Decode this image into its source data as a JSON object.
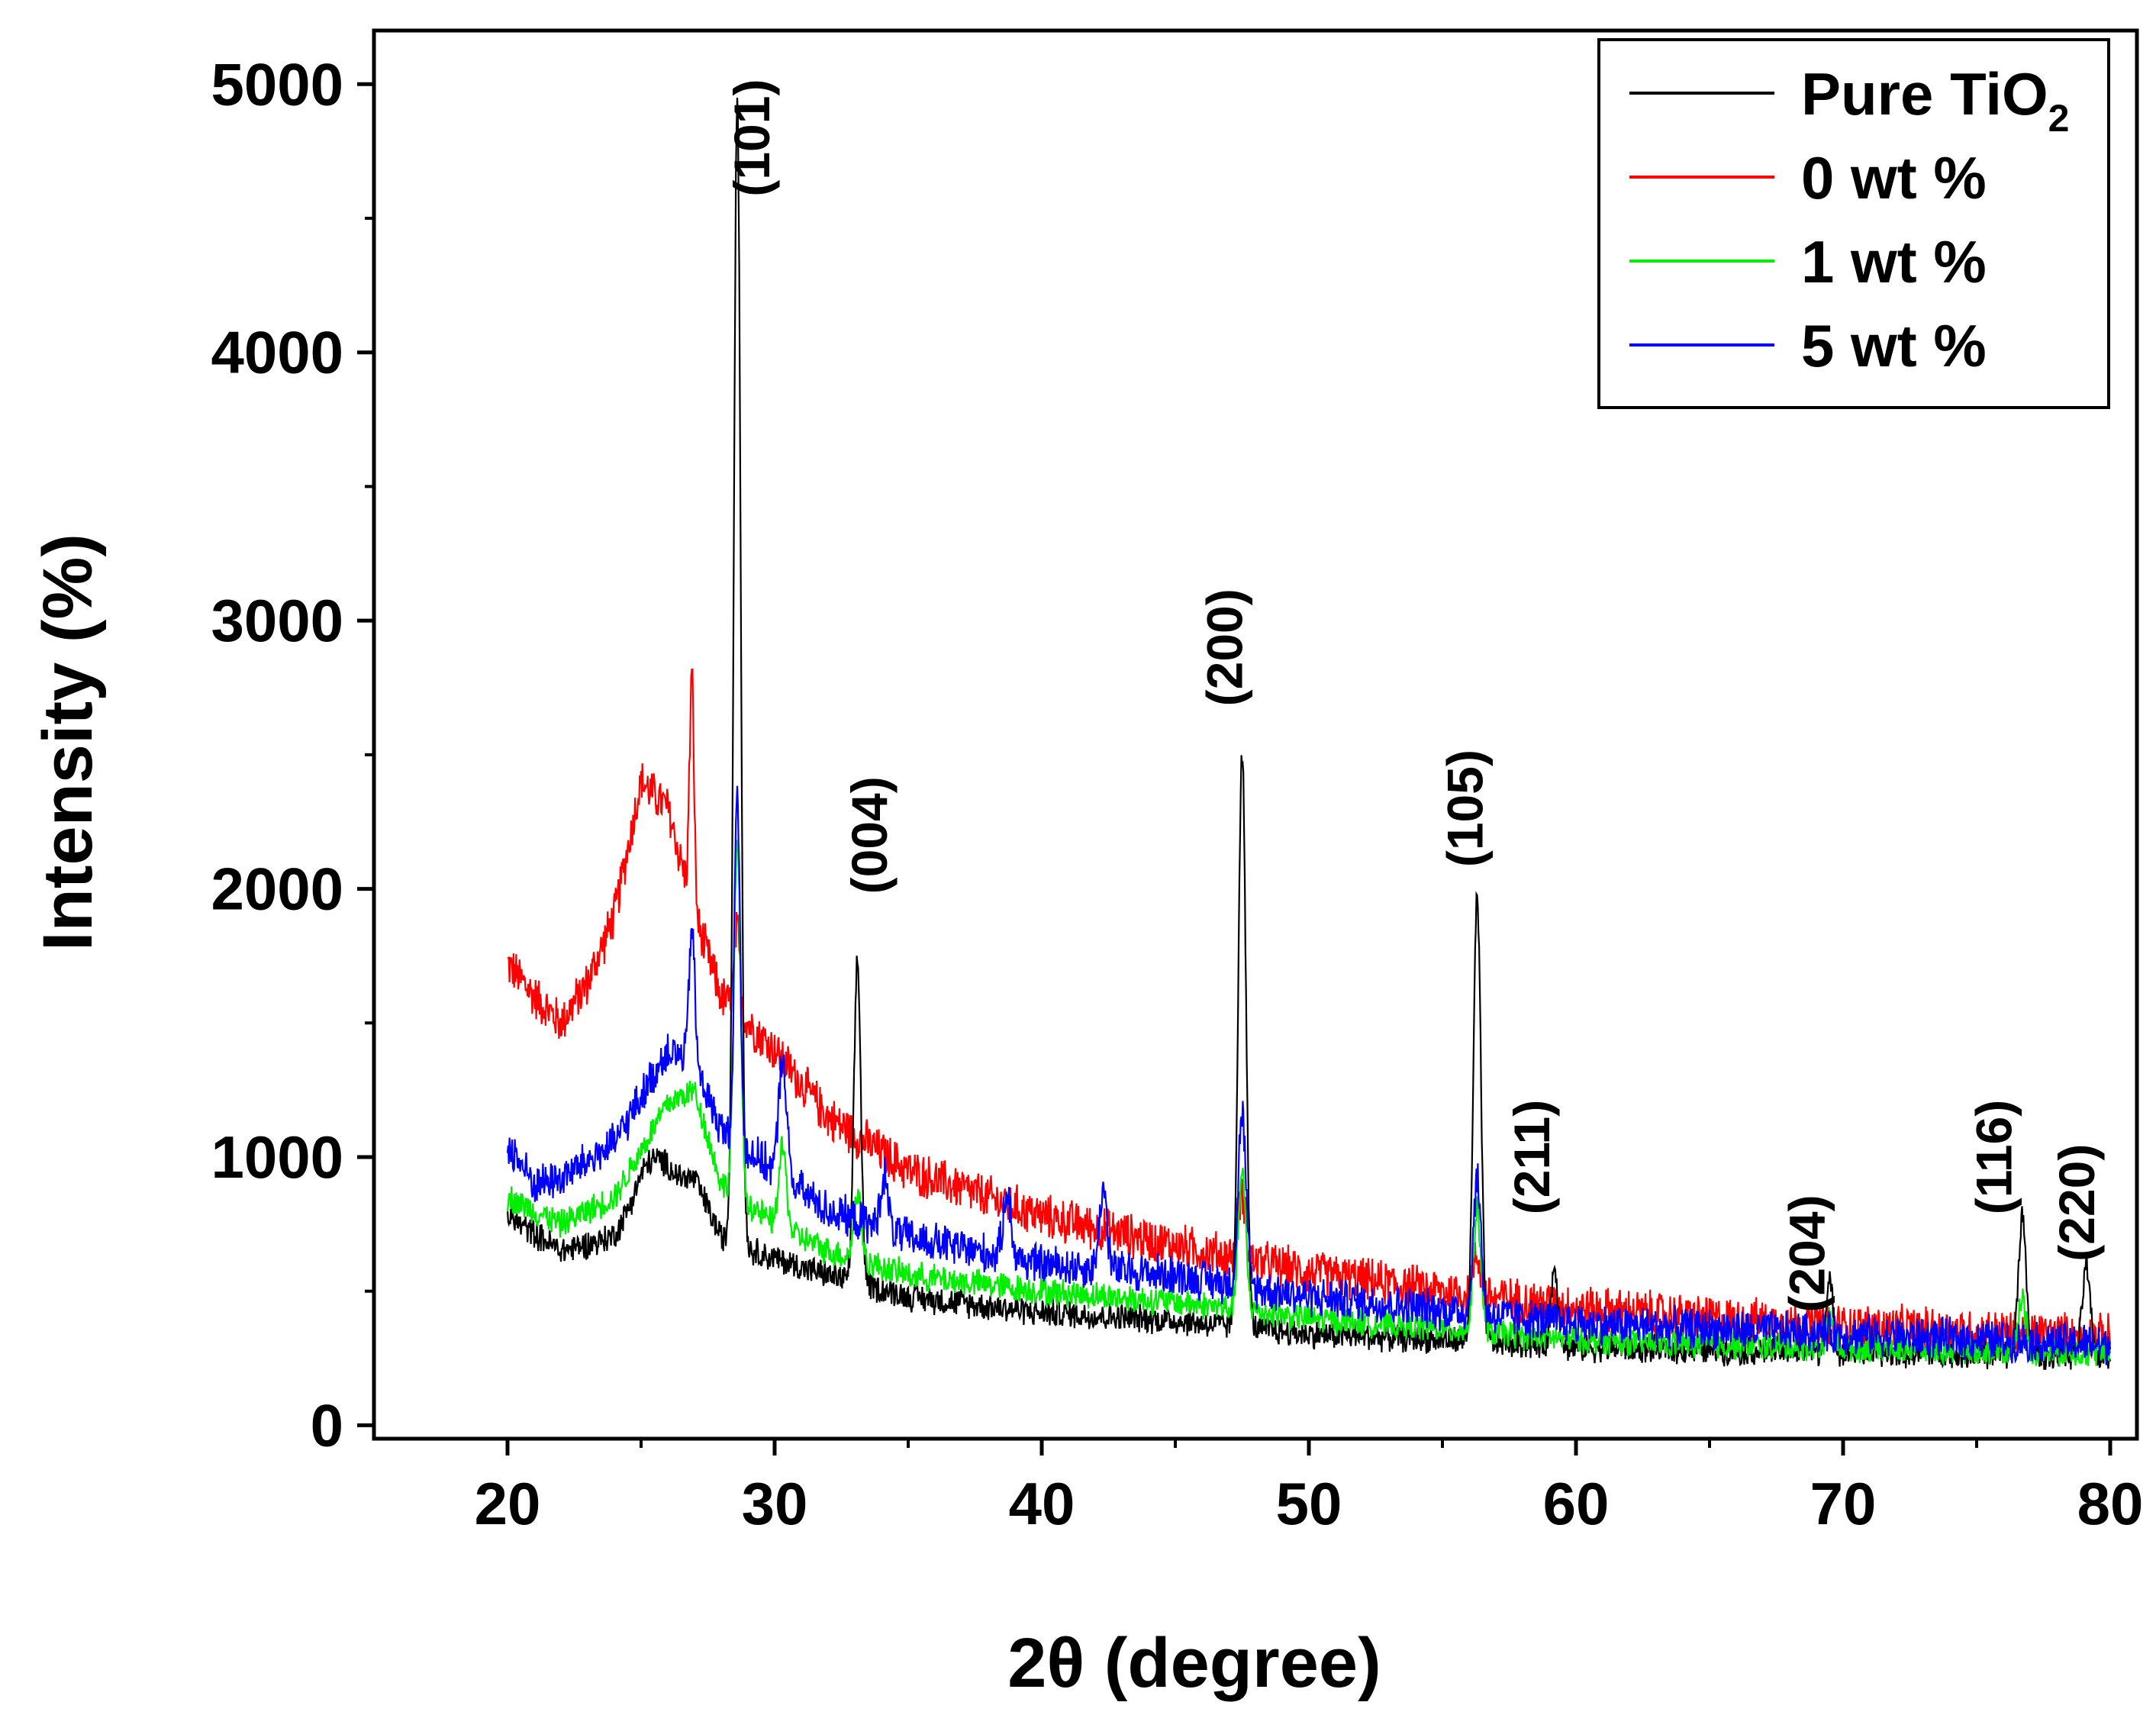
{
  "chart_data": {
    "type": "line",
    "title": "",
    "xlabel": "2θ (degree)",
    "ylabel": "Intensity (%)",
    "xlim": [
      15,
      81
    ],
    "ylim": [
      -50,
      5200
    ],
    "xticks": [
      20,
      30,
      40,
      50,
      60,
      70,
      80
    ],
    "yticks": [
      0,
      1000,
      2000,
      3000,
      4000,
      5000
    ],
    "grid": false,
    "legend_position": "top-right",
    "series": [
      {
        "name": "Pure TiO",
        "name_subscript": "2",
        "color": "#000000",
        "baseline": [
          [
            20,
            780
          ],
          [
            22,
            650
          ],
          [
            24,
            700
          ],
          [
            26,
            900
          ],
          [
            27,
            920
          ],
          [
            28,
            700
          ],
          [
            30,
            620
          ],
          [
            32,
            560
          ],
          [
            35,
            480
          ],
          [
            40,
            420
          ],
          [
            45,
            390
          ],
          [
            50,
            340
          ],
          [
            55,
            320
          ],
          [
            60,
            290
          ],
          [
            65,
            280
          ],
          [
            70,
            270
          ],
          [
            75,
            265
          ],
          [
            80,
            260
          ]
        ],
        "peaks": [
          [
            25.3,
            150,
            0.8
          ],
          [
            28.6,
            4300,
            0.18
          ],
          [
            33.1,
            1200,
            0.18
          ],
          [
            47.5,
            2150,
            0.2
          ],
          [
            56.3,
            1650,
            0.2
          ],
          [
            59.2,
            300,
            0.18
          ],
          [
            69.5,
            250,
            0.2
          ],
          [
            76.7,
            520,
            0.2
          ],
          [
            79.1,
            330,
            0.2
          ]
        ],
        "noise": 60
      },
      {
        "name": "0 wt %",
        "color": "#ff0000",
        "baseline": [
          [
            20,
            1720
          ],
          [
            21,
            1600
          ],
          [
            22,
            1500
          ],
          [
            23,
            1650
          ],
          [
            24,
            1900
          ],
          [
            25,
            2400
          ],
          [
            26,
            2300
          ],
          [
            27,
            1900
          ],
          [
            28,
            1600
          ],
          [
            30,
            1400
          ],
          [
            32,
            1150
          ],
          [
            35,
            950
          ],
          [
            40,
            780
          ],
          [
            45,
            670
          ],
          [
            50,
            570
          ],
          [
            55,
            500
          ],
          [
            60,
            440
          ],
          [
            65,
            400
          ],
          [
            70,
            370
          ],
          [
            75,
            350
          ],
          [
            80,
            330
          ]
        ],
        "peaks": [
          [
            26.9,
            850,
            0.12
          ],
          [
            28.6,
            300,
            0.15
          ],
          [
            47.5,
            250,
            0.2
          ],
          [
            56.3,
            150,
            0.2
          ]
        ],
        "noise": 95
      },
      {
        "name": "1 wt %",
        "color": "#00ee00",
        "baseline": [
          [
            20,
            850
          ],
          [
            22,
            750
          ],
          [
            24,
            850
          ],
          [
            26,
            1200
          ],
          [
            27,
            1250
          ],
          [
            28,
            900
          ],
          [
            30,
            750
          ],
          [
            32,
            650
          ],
          [
            35,
            560
          ],
          [
            40,
            500
          ],
          [
            45,
            460
          ],
          [
            50,
            400
          ],
          [
            55,
            360
          ],
          [
            60,
            320
          ],
          [
            65,
            300
          ],
          [
            70,
            290
          ],
          [
            75,
            280
          ],
          [
            80,
            270
          ]
        ],
        "peaks": [
          [
            28.6,
            1300,
            0.18
          ],
          [
            30.3,
            300,
            0.2
          ],
          [
            33.1,
            250,
            0.2
          ],
          [
            47.5,
            500,
            0.2
          ],
          [
            56.3,
            450,
            0.2
          ],
          [
            69.5,
            100,
            0.2
          ],
          [
            76.7,
            200,
            0.2
          ]
        ],
        "noise": 60
      },
      {
        "name": "5 wt %",
        "color": "#0000ff",
        "baseline": [
          [
            20,
            1050
          ],
          [
            21,
            900
          ],
          [
            22,
            920
          ],
          [
            24,
            1050
          ],
          [
            26,
            1400
          ],
          [
            27,
            1350
          ],
          [
            28,
            1100
          ],
          [
            30,
            950
          ],
          [
            32,
            800
          ],
          [
            35,
            700
          ],
          [
            40,
            600
          ],
          [
            45,
            560
          ],
          [
            50,
            480
          ],
          [
            55,
            430
          ],
          [
            60,
            380
          ],
          [
            65,
            360
          ],
          [
            70,
            340
          ],
          [
            75,
            320
          ],
          [
            80,
            300
          ]
        ],
        "peaks": [
          [
            26.9,
            500,
            0.15
          ],
          [
            28.6,
            1300,
            0.15
          ],
          [
            30.3,
            450,
            0.2
          ],
          [
            34.1,
            200,
            0.2
          ],
          [
            38.7,
            250,
            0.2
          ],
          [
            42.3,
            300,
            0.2
          ],
          [
            47.5,
            650,
            0.2
          ],
          [
            56.3,
            500,
            0.2
          ]
        ],
        "noise": 85
      }
    ],
    "annotations": [
      {
        "text": "(101)",
        "x": 29.8,
        "y": 4800
      },
      {
        "text": "(004)",
        "x": 34.2,
        "y": 2200
      },
      {
        "text": "(200)",
        "x": 47.5,
        "y": 2900
      },
      {
        "text": "(105)",
        "x": 56.5,
        "y": 2300
      },
      {
        "text": "(211)",
        "x": 59.0,
        "y": 1000
      },
      {
        "text": "(204)",
        "x": 69.3,
        "y": 640
      },
      {
        "text": "(116)",
        "x": 76.3,
        "y": 1000
      },
      {
        "text": "(220)",
        "x": 79.4,
        "y": 830
      }
    ]
  }
}
